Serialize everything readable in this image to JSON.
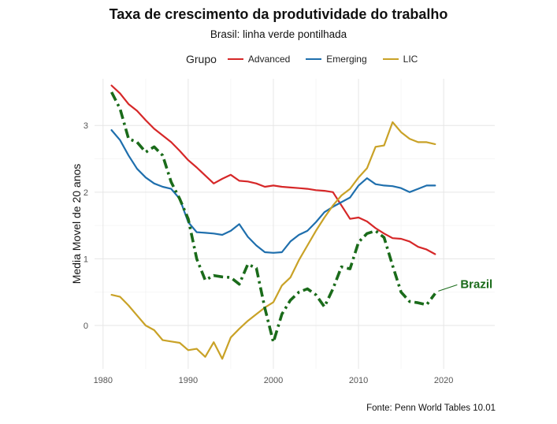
{
  "title": "Taxa de crescimento da produtividade do trabalho",
  "subtitle": "Brasil: linha verde pontilhada",
  "source": "Fonte: Penn World Tables 10.01",
  "legend": {
    "title": "Grupo",
    "items": [
      {
        "label": "Advanced",
        "color": "#d62728"
      },
      {
        "label": "Emerging",
        "color": "#1f6fad"
      },
      {
        "label": "LIC",
        "color": "#c9a227"
      }
    ]
  },
  "chart_data": {
    "type": "line",
    "title": "Taxa de crescimento da produtividade do trabalho",
    "subtitle": "Brasil: linha verde pontilhada",
    "xlabel": "",
    "ylabel": "Media Movel de 20 anos",
    "xlim": [
      1979,
      2026
    ],
    "ylim": [
      -0.65,
      3.7
    ],
    "x_ticks": [
      1980,
      1990,
      2000,
      2010,
      2020
    ],
    "y_ticks": [
      0,
      1,
      2,
      3
    ],
    "grid": true,
    "legend_position": "top",
    "annotation": {
      "label": "Brazil",
      "color": "#1a6b1a"
    },
    "series": [
      {
        "name": "Advanced",
        "color": "#d62728",
        "style": "solid",
        "x": [
          1981,
          1982,
          1983,
          1984,
          1985,
          1986,
          1987,
          1988,
          1989,
          1990,
          1991,
          1992,
          1993,
          1994,
          1995,
          1996,
          1997,
          1998,
          1999,
          2000,
          2001,
          2002,
          2003,
          2004,
          2005,
          2006,
          2007,
          2008,
          2009,
          2010,
          2011,
          2012,
          2013,
          2014,
          2015,
          2016,
          2017,
          2018,
          2019
        ],
        "y": [
          3.6,
          3.48,
          3.32,
          3.22,
          3.08,
          2.95,
          2.85,
          2.75,
          2.62,
          2.48,
          2.37,
          2.25,
          2.13,
          2.2,
          2.26,
          2.17,
          2.16,
          2.13,
          2.08,
          2.1,
          2.08,
          2.07,
          2.06,
          2.05,
          2.03,
          2.02,
          2.0,
          1.8,
          1.6,
          1.62,
          1.56,
          1.46,
          1.38,
          1.31,
          1.3,
          1.26,
          1.18,
          1.14,
          1.07
        ]
      },
      {
        "name": "Emerging",
        "color": "#1f6fad",
        "style": "solid",
        "x": [
          1981,
          1982,
          1983,
          1984,
          1985,
          1986,
          1987,
          1988,
          1989,
          1990,
          1991,
          1992,
          1993,
          1994,
          1995,
          1996,
          1997,
          1998,
          1999,
          2000,
          2001,
          2002,
          2003,
          2004,
          2005,
          2006,
          2007,
          2008,
          2009,
          2010,
          2011,
          2012,
          2013,
          2014,
          2015,
          2016,
          2017,
          2018,
          2019
        ],
        "y": [
          2.93,
          2.78,
          2.55,
          2.35,
          2.22,
          2.13,
          2.08,
          2.05,
          1.9,
          1.55,
          1.4,
          1.39,
          1.38,
          1.36,
          1.42,
          1.52,
          1.33,
          1.2,
          1.1,
          1.09,
          1.1,
          1.26,
          1.36,
          1.42,
          1.55,
          1.7,
          1.78,
          1.85,
          1.92,
          2.1,
          2.21,
          2.12,
          2.1,
          2.09,
          2.06,
          2.0,
          2.05,
          2.1,
          2.1
        ]
      },
      {
        "name": "LIC",
        "color": "#c9a227",
        "style": "solid",
        "x": [
          1981,
          1982,
          1983,
          1984,
          1985,
          1986,
          1987,
          1988,
          1989,
          1990,
          1991,
          1992,
          1993,
          1994,
          1995,
          1996,
          1997,
          1998,
          1999,
          2000,
          2001,
          2002,
          2003,
          2004,
          2005,
          2006,
          2007,
          2008,
          2009,
          2010,
          2011,
          2012,
          2013,
          2014,
          2015,
          2016,
          2017,
          2018,
          2019
        ],
        "y": [
          0.46,
          0.43,
          0.3,
          0.15,
          0.0,
          -0.07,
          -0.22,
          -0.24,
          -0.26,
          -0.37,
          -0.35,
          -0.47,
          -0.25,
          -0.5,
          -0.18,
          -0.05,
          0.07,
          0.17,
          0.27,
          0.35,
          0.6,
          0.72,
          0.98,
          1.2,
          1.42,
          1.62,
          1.8,
          1.95,
          2.05,
          2.22,
          2.36,
          2.68,
          2.7,
          3.05,
          2.9,
          2.8,
          2.75,
          2.75,
          2.72
        ]
      },
      {
        "name": "Brazil",
        "color": "#1a6b1a",
        "style": "dotdash",
        "x": [
          1981,
          1982,
          1983,
          1984,
          1985,
          1986,
          1987,
          1988,
          1989,
          1990,
          1991,
          1992,
          1993,
          1994,
          1995,
          1996,
          1997,
          1998,
          1999,
          2000,
          2001,
          2002,
          2003,
          2004,
          2005,
          2006,
          2007,
          2008,
          2009,
          2010,
          2011,
          2012,
          2013,
          2014,
          2015,
          2016,
          2017,
          2018,
          2019
        ],
        "y": [
          3.5,
          3.25,
          2.8,
          2.75,
          2.6,
          2.68,
          2.55,
          2.15,
          1.9,
          1.6,
          1.0,
          0.68,
          0.75,
          0.73,
          0.72,
          0.62,
          0.92,
          0.86,
          0.26,
          -0.25,
          0.17,
          0.38,
          0.5,
          0.55,
          0.46,
          0.28,
          0.55,
          0.88,
          0.85,
          1.25,
          1.38,
          1.42,
          1.32,
          0.9,
          0.5,
          0.36,
          0.34,
          0.31,
          0.48
        ]
      }
    ]
  }
}
